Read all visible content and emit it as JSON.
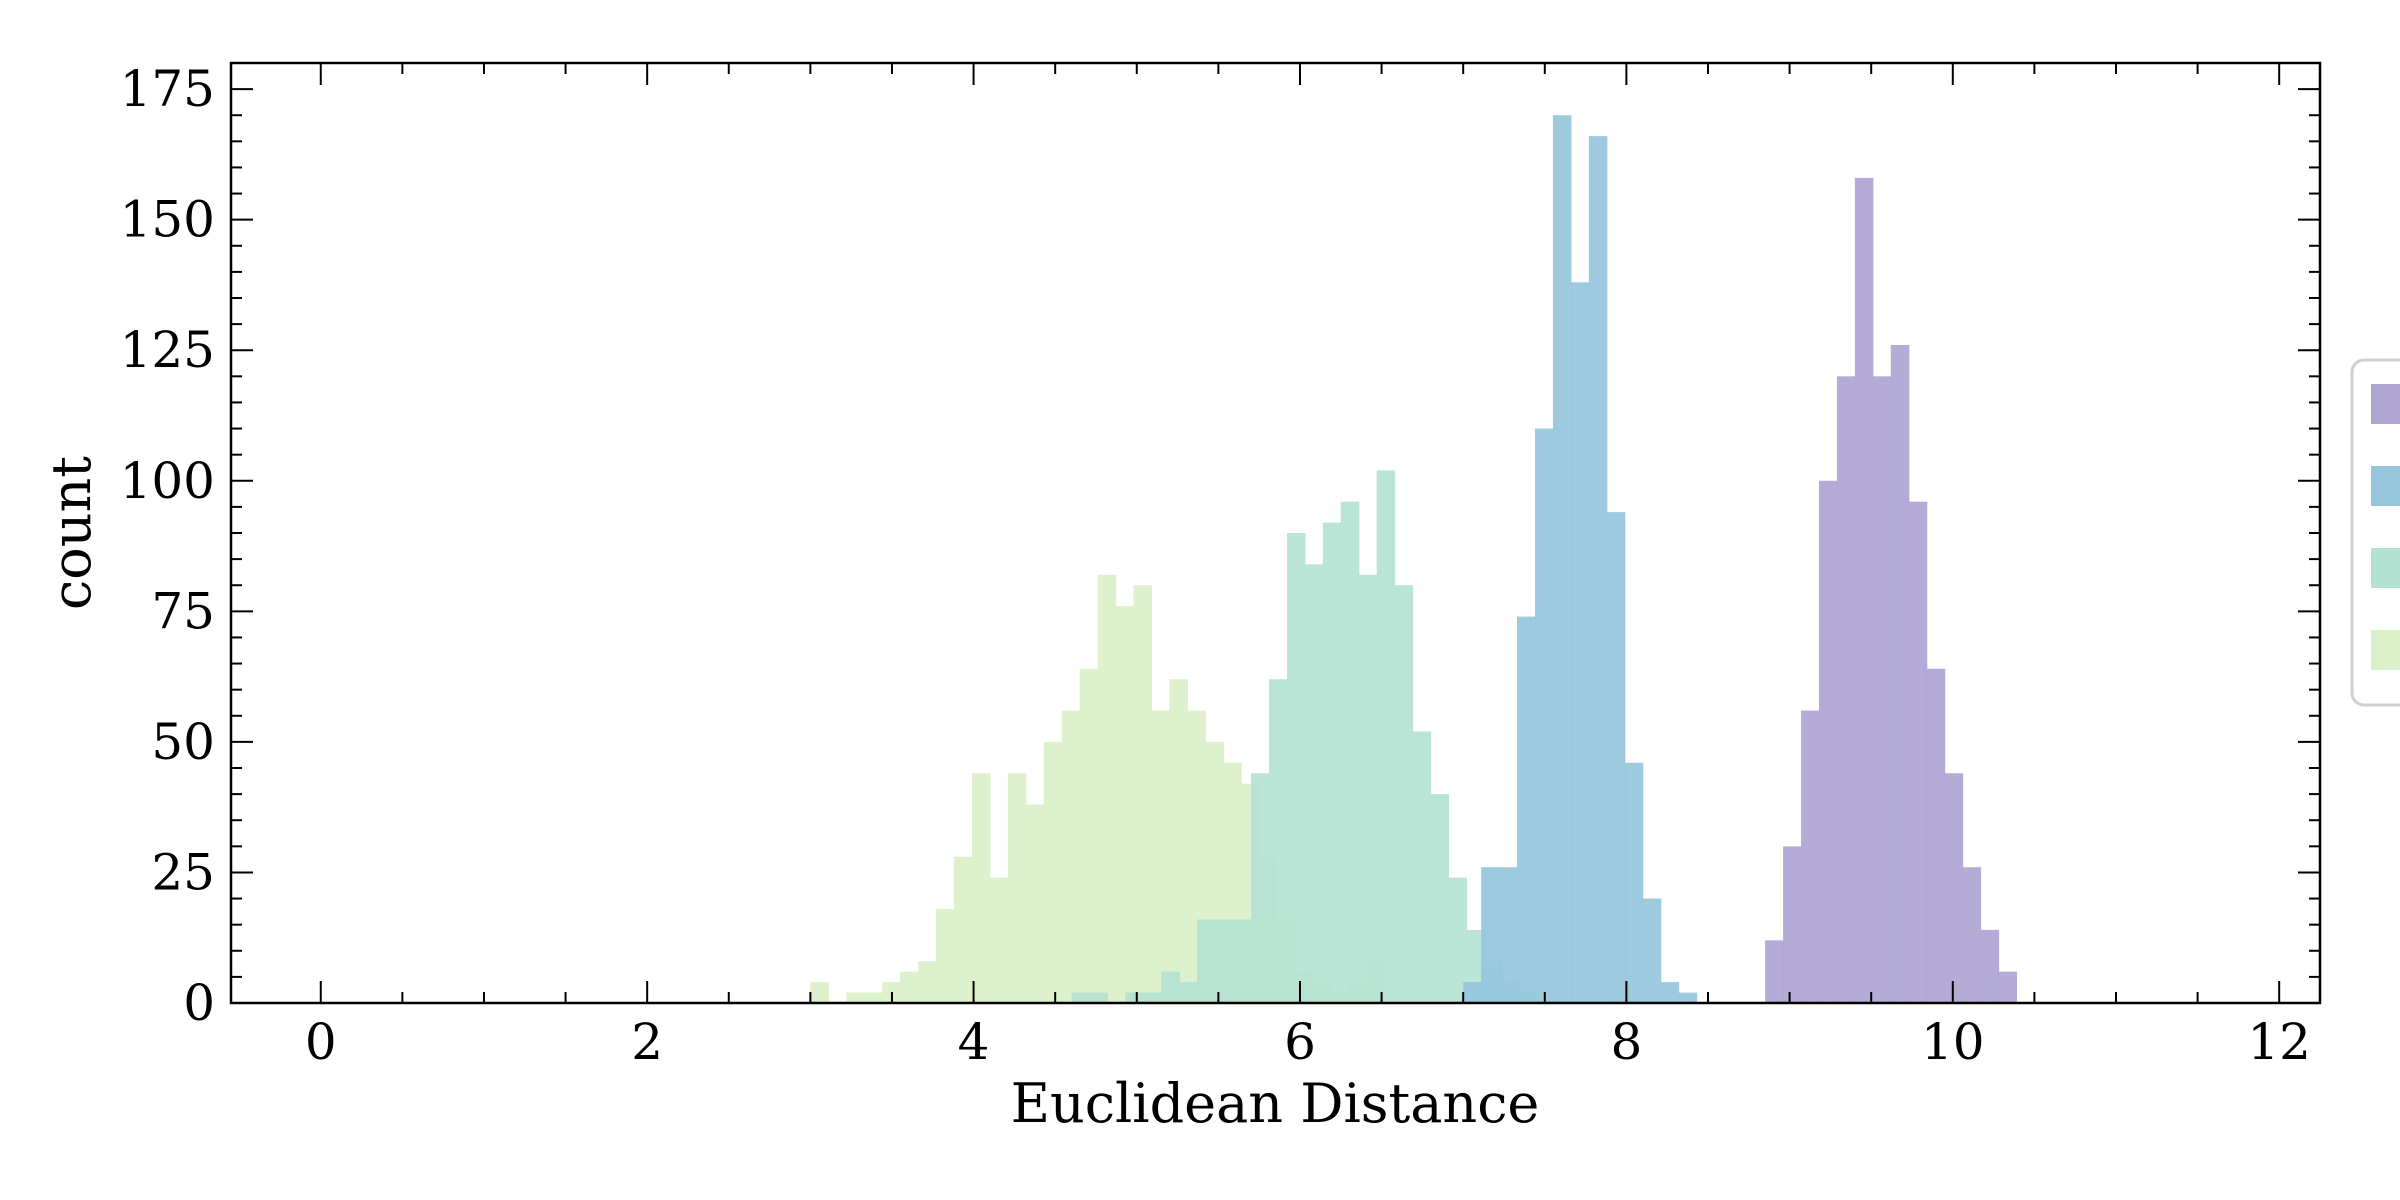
{
  "chart_data": {
    "type": "histogram",
    "xlabel": "Euclidean Distance",
    "ylabel": "count",
    "xlim": [
      -0.55,
      12.25
    ],
    "ylim": [
      0,
      180
    ],
    "x_ticks": [
      0,
      2,
      4,
      6,
      8,
      10,
      12
    ],
    "y_ticks": [
      0,
      25,
      50,
      75,
      100,
      125,
      150,
      175
    ],
    "grid": false,
    "legend": {
      "placement": "right, partially cut off",
      "entries_visible": 4,
      "labels_visible": false
    },
    "series": [
      {
        "color": "#d9f0c8",
        "bin_start": 3.0,
        "bin_width": 0.11,
        "counts": [
          4,
          0,
          2,
          2,
          4,
          6,
          8,
          18,
          28,
          44,
          24,
          44,
          38,
          50,
          56,
          64,
          82,
          76,
          80,
          56,
          62,
          56,
          50,
          46,
          42,
          28,
          16,
          6,
          4,
          2,
          4,
          8
        ]
      },
      {
        "color": "#b4e2d2",
        "bin_start": 4.6,
        "bin_width": 0.11,
        "counts": [
          2,
          2,
          0,
          2,
          2,
          6,
          4,
          16,
          16,
          16,
          44,
          62,
          90,
          84,
          92,
          96,
          82,
          102,
          80,
          52,
          40,
          24,
          14,
          8,
          4,
          2
        ]
      },
      {
        "color": "#95c5db",
        "bin_start": 7.0,
        "bin_width": 0.11,
        "counts": [
          4,
          26,
          26,
          74,
          110,
          170,
          138,
          166,
          94,
          46,
          20,
          4,
          2
        ]
      },
      {
        "color": "#aea5d3",
        "bin_start": 8.85,
        "bin_width": 0.11,
        "counts": [
          12,
          30,
          56,
          100,
          120,
          158,
          120,
          126,
          96,
          64,
          44,
          26,
          14,
          6
        ]
      }
    ]
  }
}
